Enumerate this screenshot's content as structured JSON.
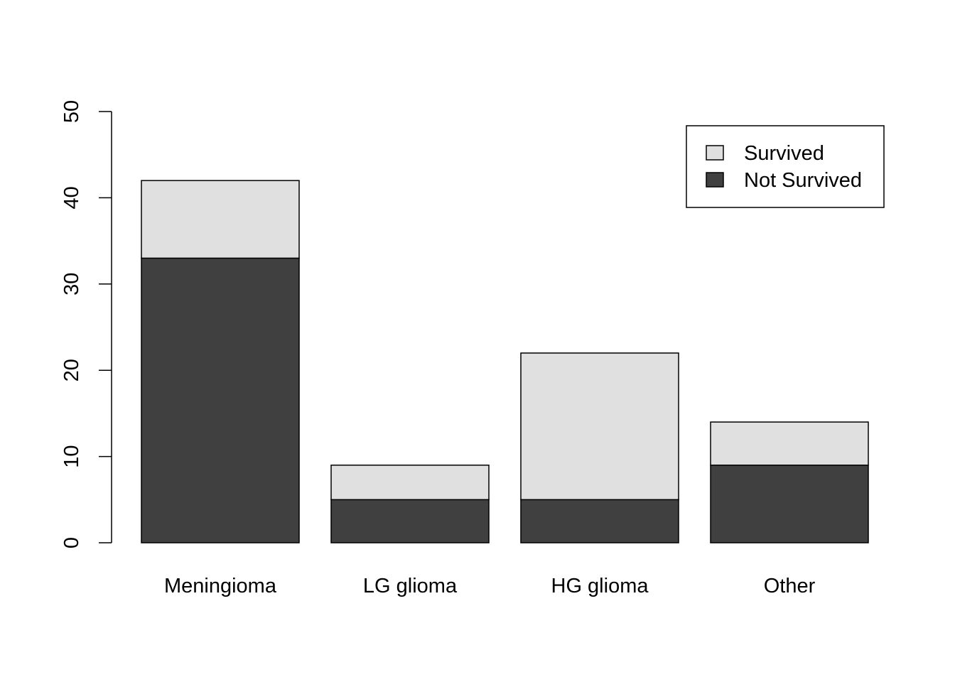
{
  "chart_data": {
    "type": "bar",
    "stacked": true,
    "categories": [
      "Meningioma",
      "LG glioma",
      "HG glioma",
      "Other"
    ],
    "series": [
      {
        "name": "Not Survived",
        "color": "#404040",
        "values": [
          33,
          5,
          5,
          9
        ]
      },
      {
        "name": "Survived",
        "color": "#e0e0e0",
        "values": [
          9,
          4,
          17,
          5
        ]
      }
    ],
    "ylim": [
      0,
      50
    ],
    "yticks": [
      0,
      10,
      20,
      30,
      40,
      50
    ],
    "grid": false,
    "legend": {
      "placement": "top-right",
      "entries": [
        {
          "label": "Survived",
          "color": "#e0e0e0"
        },
        {
          "label": "Not Survived",
          "color": "#404040"
        }
      ]
    }
  }
}
